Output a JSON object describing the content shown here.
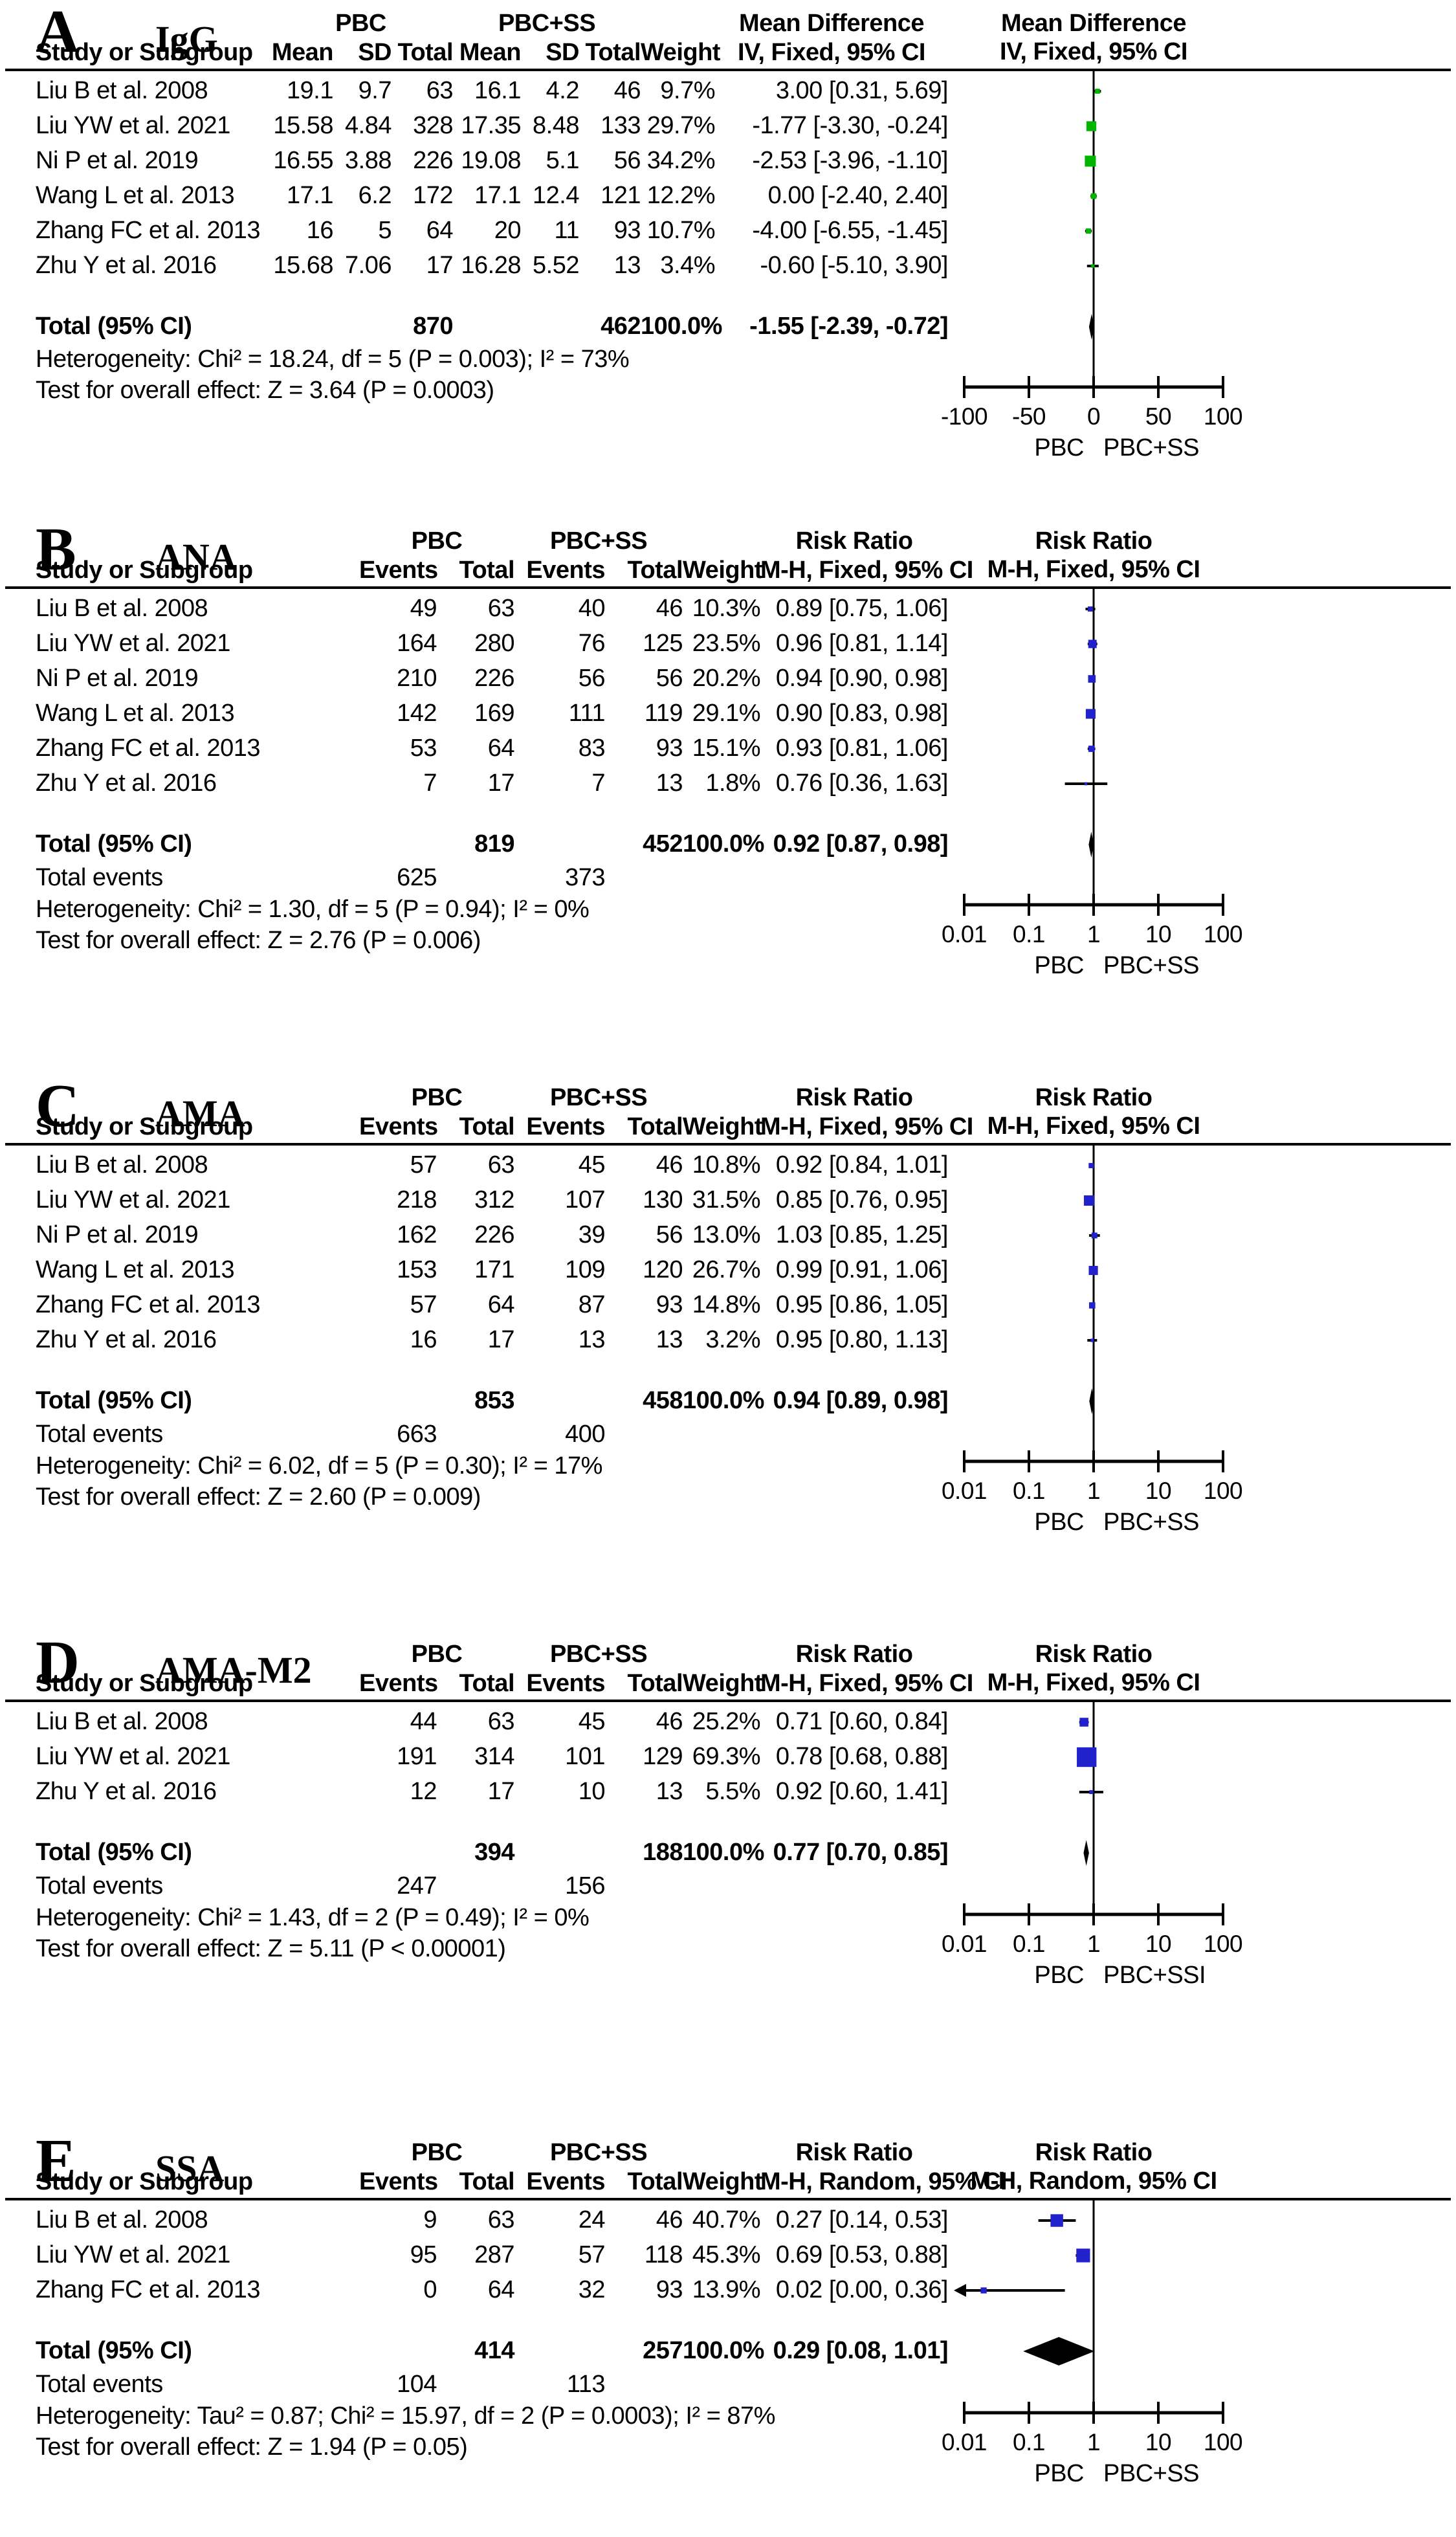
{
  "colors": {
    "mean_difference_square": "#00b400",
    "risk_ratio_square": "#2222cc",
    "diamond": "#000000",
    "line": "#000000"
  },
  "chart_data": {
    "type": "forest",
    "panels": [
      {
        "letter": "A",
        "title": "IgG",
        "measure": "Mean Difference",
        "method": "IV, Fixed, 95% CI",
        "group1": "PBC",
        "group2": "PBC+SS",
        "study_col_header": "Study or Subgroup",
        "weight_col_header": "Weight",
        "data_columns": [
          "Mean",
          "SD",
          "Total",
          "Mean",
          "SD",
          "Total"
        ],
        "scale": "linear",
        "domain": [
          -100,
          100
        ],
        "ticks": [
          {
            "v": -100,
            "label": "-100"
          },
          {
            "v": -50,
            "label": "-50"
          },
          {
            "v": 0,
            "label": "0"
          },
          {
            "v": 50,
            "label": "50"
          },
          {
            "v": 100,
            "label": "100"
          }
        ],
        "favours_left": "PBC",
        "favours_right": "PBC+SS",
        "marker_color": "#00b400",
        "rows": [
          {
            "study": "Liu B et al. 2008",
            "cells": [
              "19.1",
              "9.7",
              "63",
              "16.1",
              "4.2",
              "46"
            ],
            "weight_text": "9.7%",
            "weight": 9.7,
            "ci_text": "3.00 [0.31, 5.69]",
            "effect": 3.0,
            "lo": 0.31,
            "hi": 5.69
          },
          {
            "study": "Liu YW et al. 2021",
            "cells": [
              "15.58",
              "4.84",
              "328",
              "17.35",
              "8.48",
              "133"
            ],
            "weight_text": "29.7%",
            "weight": 29.7,
            "ci_text": "-1.77 [-3.30, -0.24]",
            "effect": -1.77,
            "lo": -3.3,
            "hi": -0.24
          },
          {
            "study": "Ni P et al. 2019",
            "cells": [
              "16.55",
              "3.88",
              "226",
              "19.08",
              "5.1",
              "56"
            ],
            "weight_text": "34.2%",
            "weight": 34.2,
            "ci_text": "-2.53 [-3.96, -1.10]",
            "effect": -2.53,
            "lo": -3.96,
            "hi": -1.1
          },
          {
            "study": "Wang L et al. 2013",
            "cells": [
              "17.1",
              "6.2",
              "172",
              "17.1",
              "12.4",
              "121"
            ],
            "weight_text": "12.2%",
            "weight": 12.2,
            "ci_text": "0.00 [-2.40, 2.40]",
            "effect": 0.0,
            "lo": -2.4,
            "hi": 2.4
          },
          {
            "study": "Zhang FC et al. 2013",
            "cells": [
              "16",
              "5",
              "64",
              "20",
              "11",
              "93"
            ],
            "weight_text": "10.7%",
            "weight": 10.7,
            "ci_text": "-4.00 [-6.55, -1.45]",
            "effect": -4.0,
            "lo": -6.55,
            "hi": -1.45
          },
          {
            "study": "Zhu Y et al. 2016",
            "cells": [
              "15.68",
              "7.06",
              "17",
              "16.28",
              "5.52",
              "13"
            ],
            "weight_text": "3.4%",
            "weight": 3.4,
            "ci_text": "-0.60 [-5.10, 3.90]",
            "effect": -0.6,
            "lo": -5.1,
            "hi": 3.9
          }
        ],
        "total": {
          "label": "Total (95% CI)",
          "t1": "870",
          "t2": "462",
          "weight_text": "100.0%",
          "ci_text": "-1.55 [-2.39, -0.72]",
          "effect": -1.55,
          "lo": -2.39,
          "hi": -0.72
        },
        "total_events": null,
        "heterogeneity": "Heterogeneity: Chi² = 18.24, df = 5 (P = 0.003); I² = 73%",
        "overall_test": "Test for overall effect: Z = 3.64 (P = 0.0003)"
      },
      {
        "letter": "B",
        "title": "ANA",
        "measure": "Risk Ratio",
        "method": "M-H, Fixed, 95% CI",
        "group1": "PBC",
        "group2": "PBC+SS",
        "study_col_header": "Study or Subgroup",
        "weight_col_header": "Weight",
        "data_columns": [
          "Events",
          "Total",
          "Events",
          "Total"
        ],
        "scale": "log",
        "domain": [
          0.01,
          100
        ],
        "ticks": [
          {
            "v": 0.01,
            "label": "0.01"
          },
          {
            "v": 0.1,
            "label": "0.1"
          },
          {
            "v": 1,
            "label": "1"
          },
          {
            "v": 10,
            "label": "10"
          },
          {
            "v": 100,
            "label": "100"
          }
        ],
        "favours_left": "PBC",
        "favours_right": "PBC+SS",
        "marker_color": "#2222cc",
        "rows": [
          {
            "study": "Liu B et al. 2008",
            "cells": [
              "49",
              "63",
              "40",
              "46"
            ],
            "weight_text": "10.3%",
            "weight": 10.3,
            "ci_text": "0.89 [0.75, 1.06]",
            "effect": 0.89,
            "lo": 0.75,
            "hi": 1.06
          },
          {
            "study": "Liu YW et al. 2021",
            "cells": [
              "164",
              "280",
              "76",
              "125"
            ],
            "weight_text": "23.5%",
            "weight": 23.5,
            "ci_text": "0.96 [0.81, 1.14]",
            "effect": 0.96,
            "lo": 0.81,
            "hi": 1.14
          },
          {
            "study": "Ni P et al. 2019",
            "cells": [
              "210",
              "226",
              "56",
              "56"
            ],
            "weight_text": "20.2%",
            "weight": 20.2,
            "ci_text": "0.94 [0.90, 0.98]",
            "effect": 0.94,
            "lo": 0.9,
            "hi": 0.98
          },
          {
            "study": "Wang L et al. 2013",
            "cells": [
              "142",
              "169",
              "111",
              "119"
            ],
            "weight_text": "29.1%",
            "weight": 29.1,
            "ci_text": "0.90 [0.83, 0.98]",
            "effect": 0.9,
            "lo": 0.83,
            "hi": 0.98
          },
          {
            "study": "Zhang FC et al. 2013",
            "cells": [
              "53",
              "64",
              "83",
              "93"
            ],
            "weight_text": "15.1%",
            "weight": 15.1,
            "ci_text": "0.93 [0.81, 1.06]",
            "effect": 0.93,
            "lo": 0.81,
            "hi": 1.06
          },
          {
            "study": "Zhu Y et al. 2016",
            "cells": [
              "7",
              "17",
              "7",
              "13"
            ],
            "weight_text": "1.8%",
            "weight": 1.8,
            "ci_text": "0.76 [0.36, 1.63]",
            "effect": 0.76,
            "lo": 0.36,
            "hi": 1.63
          }
        ],
        "total": {
          "label": "Total (95% CI)",
          "t1": "819",
          "t2": "452",
          "weight_text": "100.0%",
          "ci_text": "0.92 [0.87, 0.98]",
          "effect": 0.92,
          "lo": 0.87,
          "hi": 0.98
        },
        "total_events": {
          "label": "Total events",
          "v1": "625",
          "v2": "373"
        },
        "heterogeneity": "Heterogeneity: Chi² = 1.30, df = 5 (P = 0.94); I² = 0%",
        "overall_test": "Test for overall effect: Z = 2.76 (P = 0.006)"
      },
      {
        "letter": "C",
        "title": "AMA",
        "measure": "Risk Ratio",
        "method": "M-H, Fixed, 95% CI",
        "group1": "PBC",
        "group2": "PBC+SS",
        "study_col_header": "Study or Subgroup",
        "weight_col_header": "Weight",
        "data_columns": [
          "Events",
          "Total",
          "Events",
          "Total"
        ],
        "scale": "log",
        "domain": [
          0.01,
          100
        ],
        "ticks": [
          {
            "v": 0.01,
            "label": "0.01"
          },
          {
            "v": 0.1,
            "label": "0.1"
          },
          {
            "v": 1,
            "label": "1"
          },
          {
            "v": 10,
            "label": "10"
          },
          {
            "v": 100,
            "label": "100"
          }
        ],
        "favours_left": "PBC",
        "favours_right": "PBC+SS",
        "marker_color": "#2222cc",
        "rows": [
          {
            "study": "Liu B et al. 2008",
            "cells": [
              "57",
              "63",
              "45",
              "46"
            ],
            "weight_text": "10.8%",
            "weight": 10.8,
            "ci_text": "0.92 [0.84, 1.01]",
            "effect": 0.92,
            "lo": 0.84,
            "hi": 1.01
          },
          {
            "study": "Liu YW et al. 2021",
            "cells": [
              "218",
              "312",
              "107",
              "130"
            ],
            "weight_text": "31.5%",
            "weight": 31.5,
            "ci_text": "0.85 [0.76, 0.95]",
            "effect": 0.85,
            "lo": 0.76,
            "hi": 0.95
          },
          {
            "study": "Ni P et al. 2019",
            "cells": [
              "162",
              "226",
              "39",
              "56"
            ],
            "weight_text": "13.0%",
            "weight": 13.0,
            "ci_text": "1.03 [0.85, 1.25]",
            "effect": 1.03,
            "lo": 0.85,
            "hi": 1.25
          },
          {
            "study": "Wang L et al. 2013",
            "cells": [
              "153",
              "171",
              "109",
              "120"
            ],
            "weight_text": "26.7%",
            "weight": 26.7,
            "ci_text": "0.99 [0.91, 1.06]",
            "effect": 0.99,
            "lo": 0.91,
            "hi": 1.06
          },
          {
            "study": "Zhang FC et al. 2013",
            "cells": [
              "57",
              "64",
              "87",
              "93"
            ],
            "weight_text": "14.8%",
            "weight": 14.8,
            "ci_text": "0.95 [0.86, 1.05]",
            "effect": 0.95,
            "lo": 0.86,
            "hi": 1.05
          },
          {
            "study": "Zhu Y et al. 2016",
            "cells": [
              "16",
              "17",
              "13",
              "13"
            ],
            "weight_text": "3.2%",
            "weight": 3.2,
            "ci_text": "0.95 [0.80, 1.13]",
            "effect": 0.95,
            "lo": 0.8,
            "hi": 1.13
          }
        ],
        "total": {
          "label": "Total (95% CI)",
          "t1": "853",
          "t2": "458",
          "weight_text": "100.0%",
          "ci_text": "0.94 [0.89, 0.98]",
          "effect": 0.94,
          "lo": 0.89,
          "hi": 0.98
        },
        "total_events": {
          "label": "Total events",
          "v1": "663",
          "v2": "400"
        },
        "heterogeneity": "Heterogeneity: Chi² = 6.02, df = 5 (P = 0.30); I² = 17%",
        "overall_test": "Test for overall effect: Z = 2.60 (P = 0.009)"
      },
      {
        "letter": "D",
        "title": "AMA-M2",
        "measure": "Risk Ratio",
        "method": "M-H, Fixed, 95% CI",
        "group1": "PBC",
        "group2": "PBC+SS",
        "study_col_header": "Study or Subgroup",
        "weight_col_header": "Weight",
        "data_columns": [
          "Events",
          "Total",
          "Events",
          "Total"
        ],
        "scale": "log",
        "domain": [
          0.01,
          100
        ],
        "ticks": [
          {
            "v": 0.01,
            "label": "0.01"
          },
          {
            "v": 0.1,
            "label": "0.1"
          },
          {
            "v": 1,
            "label": "1"
          },
          {
            "v": 10,
            "label": "10"
          },
          {
            "v": 100,
            "label": "100"
          }
        ],
        "favours_left": "PBC",
        "favours_right": "PBC+SSI",
        "marker_color": "#2222cc",
        "rows": [
          {
            "study": "Liu B et al. 2008",
            "cells": [
              "44",
              "63",
              "45",
              "46"
            ],
            "weight_text": "25.2%",
            "weight": 25.2,
            "ci_text": "0.71 [0.60, 0.84]",
            "effect": 0.71,
            "lo": 0.6,
            "hi": 0.84
          },
          {
            "study": "Liu YW et al. 2021",
            "cells": [
              "191",
              "314",
              "101",
              "129"
            ],
            "weight_text": "69.3%",
            "weight": 69.3,
            "ci_text": "0.78 [0.68, 0.88]",
            "effect": 0.78,
            "lo": 0.68,
            "hi": 0.88
          },
          {
            "study": "Zhu Y et al. 2016",
            "cells": [
              "12",
              "17",
              "10",
              "13"
            ],
            "weight_text": "5.5%",
            "weight": 5.5,
            "ci_text": "0.92 [0.60, 1.41]",
            "effect": 0.92,
            "lo": 0.6,
            "hi": 1.41
          }
        ],
        "total": {
          "label": "Total (95% CI)",
          "t1": "394",
          "t2": "188",
          "weight_text": "100.0%",
          "ci_text": "0.77 [0.70, 0.85]",
          "effect": 0.77,
          "lo": 0.7,
          "hi": 0.85
        },
        "total_events": {
          "label": "Total events",
          "v1": "247",
          "v2": "156"
        },
        "heterogeneity": "Heterogeneity: Chi² = 1.43, df = 2 (P = 0.49); I² = 0%",
        "overall_test": "Test for overall effect: Z = 5.11 (P < 0.00001)"
      },
      {
        "letter": "E",
        "title": "SSA",
        "measure": "Risk Ratio",
        "method": "M-H, Random, 95% CI",
        "group1": "PBC",
        "group2": "PBC+SS",
        "study_col_header": "Study or Subgroup",
        "weight_col_header": "Weight",
        "data_columns": [
          "Events",
          "Total",
          "Events",
          "Total"
        ],
        "scale": "log",
        "domain": [
          0.01,
          100
        ],
        "ticks": [
          {
            "v": 0.01,
            "label": "0.01"
          },
          {
            "v": 0.1,
            "label": "0.1"
          },
          {
            "v": 1,
            "label": "1"
          },
          {
            "v": 10,
            "label": "10"
          },
          {
            "v": 100,
            "label": "100"
          }
        ],
        "favours_left": "PBC",
        "favours_right": "PBC+SS",
        "marker_color": "#2222cc",
        "rows": [
          {
            "study": "Liu B et al. 2008",
            "cells": [
              "9",
              "63",
              "24",
              "46"
            ],
            "weight_text": "40.7%",
            "weight": 40.7,
            "ci_text": "0.27 [0.14, 0.53]",
            "effect": 0.27,
            "lo": 0.14,
            "hi": 0.53
          },
          {
            "study": "Liu YW et al. 2021",
            "cells": [
              "95",
              "287",
              "57",
              "118"
            ],
            "weight_text": "45.3%",
            "weight": 45.3,
            "ci_text": "0.69 [0.53, 0.88]",
            "effect": 0.69,
            "lo": 0.53,
            "hi": 0.88
          },
          {
            "study": "Zhang FC et al. 2013",
            "cells": [
              "0",
              "64",
              "32",
              "93"
            ],
            "weight_text": "13.9%",
            "weight": 13.9,
            "ci_text": "0.02 [0.00, 0.36]",
            "effect": 0.02,
            "lo": 0.0,
            "hi": 0.36
          }
        ],
        "total": {
          "label": "Total (95% CI)",
          "t1": "414",
          "t2": "257",
          "weight_text": "100.0%",
          "ci_text": "0.29 [0.08, 1.01]",
          "effect": 0.29,
          "lo": 0.08,
          "hi": 1.01
        },
        "total_events": {
          "label": "Total events",
          "v1": "104",
          "v2": "113"
        },
        "heterogeneity": "Heterogeneity: Tau² = 0.87; Chi² = 15.97, df = 2 (P = 0.0003); I² = 87%",
        "overall_test": "Test for overall effect: Z = 1.94 (P = 0.05)"
      }
    ]
  }
}
